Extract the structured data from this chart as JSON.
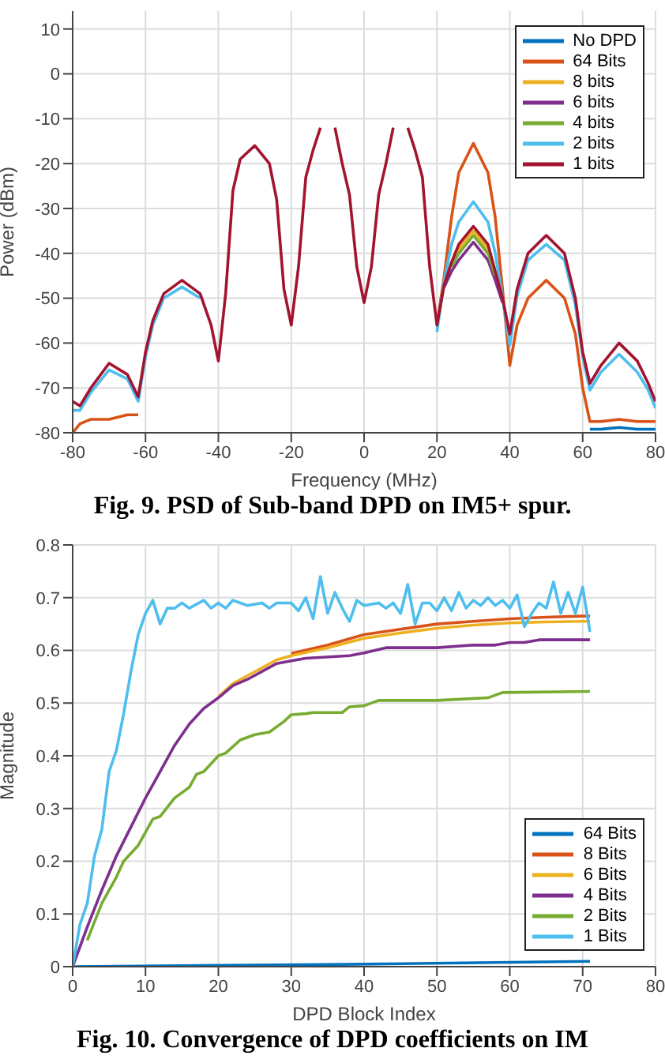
{
  "chart_data": [
    {
      "type": "line",
      "xlabel": "Frequency (MHz)",
      "ylabel": "Power (dBm)",
      "annotations": [
        "Fig. 9. PSD of Sub-band DPD on IM5+ spur."
      ],
      "x": [
        -80,
        -78,
        -75,
        -70,
        -65,
        -62,
        -60,
        -58,
        -55,
        -50,
        -45,
        -42,
        -40,
        -38,
        -36,
        -34,
        -30,
        -26,
        -24,
        -22,
        -20,
        -18,
        -16,
        -14,
        -12,
        -11,
        -9,
        -8,
        -6,
        -4,
        -2,
        0,
        2,
        4,
        6,
        8,
        9,
        11,
        12,
        14,
        16,
        18,
        20,
        22,
        24,
        26,
        30,
        34,
        36,
        38,
        40,
        42,
        45,
        50,
        55,
        58,
        60,
        62,
        65,
        70,
        75,
        78,
        80
      ],
      "xlim": [
        -80,
        80
      ],
      "xticks": [
        -80,
        -60,
        -40,
        -20,
        0,
        20,
        40,
        60,
        80
      ],
      "ylim": [
        -80,
        14
      ],
      "yticks": [
        -80,
        -70,
        -60,
        -50,
        -40,
        -30,
        -20,
        -10,
        0,
        10
      ],
      "grid": true,
      "legend": "top right",
      "series": [
        {
          "name": "No DPD",
          "color": "#0072bd",
          "x": [
            62,
            65,
            70,
            75,
            78,
            80
          ],
          "values": [
            -79.2,
            -79.2,
            -78.8,
            -79.2,
            -79.2,
            -79.2
          ]
        },
        {
          "name": "64 Bits",
          "color": "#d95319",
          "values": [
            -80,
            -78,
            -77,
            -77,
            -76,
            -76,
            null,
            null,
            null,
            null,
            null,
            null,
            null,
            null,
            null,
            null,
            null,
            null,
            null,
            null,
            null,
            null,
            null,
            null,
            null,
            null,
            null,
            null,
            null,
            null,
            null,
            null,
            null,
            null,
            null,
            null,
            null,
            null,
            null,
            null,
            null,
            null,
            -56,
            -45,
            -32,
            -22,
            -15.5,
            -22,
            -32,
            -48,
            -65,
            -56,
            -50,
            -46,
            -50,
            -58,
            -70,
            -77.5,
            -77.5,
            -77,
            -77.5,
            -77.5,
            -77.5
          ]
        },
        {
          "name": "8 bits",
          "color": "#edb120",
          "x": [
            24,
            26,
            30,
            34,
            36
          ],
          "values": [
            -42.5,
            -39,
            -35,
            -39,
            -44.5
          ]
        },
        {
          "name": "6 bits",
          "color": "#7e2f8e",
          "x": [
            22,
            24,
            26,
            30,
            34,
            36,
            38
          ],
          "values": [
            -47.5,
            -44,
            -41.5,
            -37.5,
            -41.5,
            -46,
            -51
          ]
        },
        {
          "name": "4 bits",
          "color": "#77ac30",
          "x": [
            24,
            26,
            30,
            34,
            36
          ],
          "values": [
            -43,
            -40,
            -36,
            -40,
            -45
          ]
        },
        {
          "name": "2 bits",
          "color": "#4dbeee",
          "values": [
            -75,
            -75,
            -71,
            -66,
            -68,
            -73,
            -63,
            -56,
            -50,
            -47.5,
            -50,
            null,
            null,
            null,
            null,
            null,
            null,
            null,
            null,
            null,
            null,
            null,
            null,
            null,
            null,
            null,
            null,
            null,
            null,
            null,
            null,
            null,
            null,
            null,
            null,
            null,
            null,
            null,
            null,
            null,
            null,
            null,
            -57.5,
            -46,
            -38,
            -33,
            -28.5,
            -33,
            -40,
            -50,
            -60.5,
            -49.5,
            -41.5,
            -38,
            -41.5,
            -51.5,
            -63,
            -70.5,
            -66.5,
            -62.5,
            -66.5,
            -70.5,
            -74.5
          ]
        },
        {
          "name": "1 bits",
          "color": "#a2142f",
          "values": [
            -73,
            -74,
            -70,
            -64.5,
            -67,
            -72,
            -62,
            -55,
            -49,
            -46,
            -49,
            -56,
            -64,
            -49,
            -26,
            -19,
            -16,
            -20,
            -28,
            -48,
            -56,
            -43,
            -23,
            -17,
            -12,
            null,
            null,
            -12,
            -20,
            -27,
            -43,
            -51,
            -43,
            -27,
            -20,
            -12,
            null,
            null,
            -12,
            -17,
            -23,
            -43,
            -56,
            -47,
            -42,
            -38,
            -34,
            -38,
            -44,
            -50,
            -58,
            -48,
            -40,
            -36,
            -40,
            -50,
            -62,
            -69,
            -65,
            -60,
            -64,
            -69,
            -73
          ]
        }
      ]
    },
    {
      "type": "line",
      "xlabel": "DPD Block Index",
      "ylabel": "Magnitude",
      "annotations": [
        "Fig. 10. Convergence of DPD coefficients on IM"
      ],
      "xlim": [
        0,
        80
      ],
      "xticks": [
        0,
        10,
        20,
        30,
        40,
        50,
        60,
        70,
        80
      ],
      "ylim": [
        0,
        0.8
      ],
      "yticks": [
        0,
        0.1,
        0.2,
        0.3,
        0.4,
        0.5,
        0.6,
        0.7,
        0.8
      ],
      "grid": true,
      "legend": "bottom right",
      "series": [
        {
          "name": "64 Bits",
          "color": "#0072bd",
          "x": [
            0,
            35,
            71
          ],
          "values": [
            0,
            0.004,
            0.01
          ]
        },
        {
          "name": "8 Bits",
          "color": "#d95319",
          "x": [
            30,
            35,
            40,
            45,
            50,
            55,
            60,
            65,
            70,
            71
          ],
          "values": [
            0.594,
            0.61,
            0.63,
            0.64,
            0.65,
            0.655,
            0.66,
            0.663,
            0.665,
            0.665
          ]
        },
        {
          "name": "6 Bits",
          "color": "#edb120",
          "x": [
            20,
            22,
            24,
            26,
            28,
            30,
            35,
            40,
            45,
            50,
            55,
            60,
            65,
            70,
            71
          ],
          "values": [
            0.512,
            0.537,
            0.552,
            0.567,
            0.582,
            0.59,
            0.605,
            0.623,
            0.633,
            0.642,
            0.648,
            0.652,
            0.654,
            0.655,
            0.655
          ]
        },
        {
          "name": "4 Bits",
          "color": "#7e2f8e",
          "x": [
            0,
            2,
            4,
            6,
            8,
            10,
            12,
            14,
            16,
            18,
            20,
            22,
            24,
            26,
            28,
            30,
            32,
            38,
            40,
            43,
            50,
            55,
            58,
            60,
            62,
            64,
            71
          ],
          "values": [
            0,
            0.075,
            0.145,
            0.21,
            0.265,
            0.32,
            0.37,
            0.42,
            0.46,
            0.49,
            0.51,
            0.533,
            0.545,
            0.56,
            0.575,
            0.58,
            0.585,
            0.59,
            0.595,
            0.605,
            0.605,
            0.61,
            0.61,
            0.615,
            0.615,
            0.62,
            0.62
          ]
        },
        {
          "name": "2 Bits",
          "color": "#77ac30",
          "x": [
            2,
            4,
            6,
            7,
            9,
            11,
            12,
            14,
            16,
            17,
            18,
            20,
            21,
            23,
            25,
            27,
            29,
            30,
            32,
            33,
            37,
            38,
            40,
            42,
            50,
            57,
            59,
            71
          ],
          "values": [
            0.05,
            0.12,
            0.17,
            0.2,
            0.23,
            0.28,
            0.285,
            0.32,
            0.34,
            0.365,
            0.37,
            0.4,
            0.405,
            0.43,
            0.44,
            0.445,
            0.465,
            0.478,
            0.48,
            0.482,
            0.482,
            0.493,
            0.495,
            0.505,
            0.505,
            0.51,
            0.52,
            0.522
          ]
        },
        {
          "name": "1 Bits",
          "color": "#4dbeee",
          "x": [
            0,
            1,
            2,
            3,
            4,
            5,
            6,
            7,
            8,
            9,
            10,
            11,
            12,
            13,
            14,
            15,
            16,
            18,
            19,
            20,
            21,
            22,
            24,
            26,
            27,
            28,
            30,
            31,
            32,
            33,
            34,
            35,
            36,
            37,
            38,
            39,
            40,
            42,
            43,
            44,
            45,
            46,
            47,
            48,
            49,
            50,
            51,
            52,
            53,
            54,
            55,
            56,
            57,
            58,
            59,
            60,
            61,
            62,
            63,
            64,
            65,
            66,
            67,
            68,
            69,
            70,
            71
          ],
          "values": [
            0,
            0.08,
            0.12,
            0.21,
            0.26,
            0.37,
            0.41,
            0.48,
            0.56,
            0.63,
            0.67,
            0.695,
            0.65,
            0.68,
            0.68,
            0.69,
            0.68,
            0.695,
            0.68,
            0.69,
            0.68,
            0.695,
            0.685,
            0.69,
            0.68,
            0.69,
            0.69,
            0.675,
            0.7,
            0.66,
            0.74,
            0.67,
            0.71,
            0.68,
            0.655,
            0.695,
            0.685,
            0.69,
            0.68,
            0.69,
            0.67,
            0.725,
            0.65,
            0.69,
            0.69,
            0.675,
            0.7,
            0.675,
            0.71,
            0.68,
            0.695,
            0.685,
            0.7,
            0.685,
            0.695,
            0.68,
            0.705,
            0.645,
            0.67,
            0.69,
            0.68,
            0.73,
            0.67,
            0.71,
            0.67,
            0.72,
            0.635
          ]
        }
      ]
    }
  ]
}
